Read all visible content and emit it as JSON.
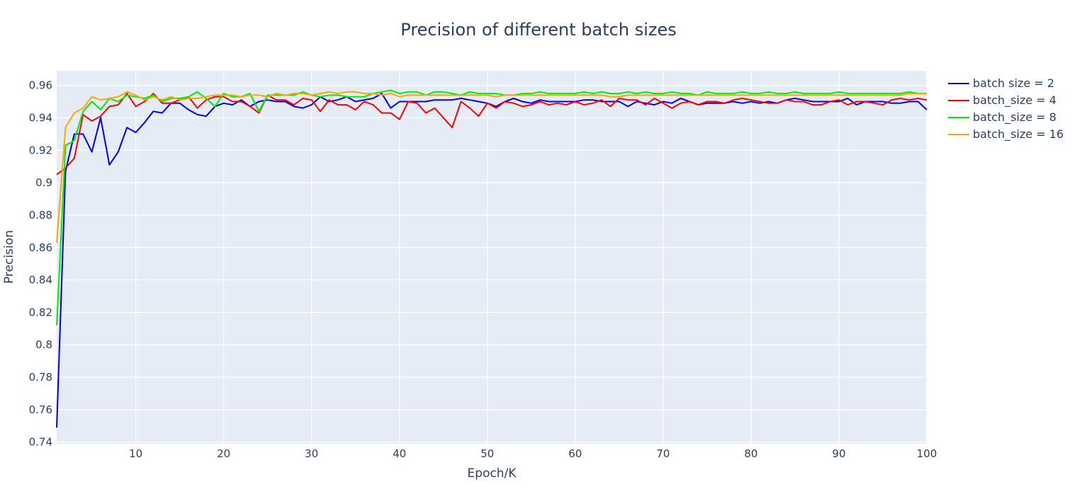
{
  "chart_data": {
    "type": "line",
    "title": "Precision of different batch sizes",
    "xlabel": "Epoch/K",
    "ylabel": "Precision",
    "xlim": [
      1,
      100
    ],
    "ylim": [
      0.739,
      0.969
    ],
    "x_ticks": [
      10,
      20,
      30,
      40,
      50,
      60,
      70,
      80,
      90,
      100
    ],
    "x_tick_labels": [
      "10",
      "20",
      "30",
      "40",
      "50",
      "60",
      "70",
      "80",
      "90",
      "100"
    ],
    "y_ticks": [
      0.74,
      0.76,
      0.78,
      0.8,
      0.82,
      0.84,
      0.86,
      0.88,
      0.9,
      0.92,
      0.94,
      0.96
    ],
    "y_tick_labels": [
      "0.74",
      "0.76",
      "0.78",
      "0.8",
      "0.82",
      "0.84",
      "0.86",
      "0.88",
      "0.9",
      "0.92",
      "0.94",
      "0.96"
    ],
    "grid": true,
    "legend_position": "top-right, outside plot",
    "plot_bgcolor": "#e5ecf6",
    "x": [
      1,
      2,
      3,
      4,
      5,
      6,
      7,
      8,
      9,
      10,
      11,
      12,
      13,
      14,
      15,
      16,
      17,
      18,
      19,
      20,
      21,
      22,
      23,
      24,
      25,
      26,
      27,
      28,
      29,
      30,
      31,
      32,
      33,
      34,
      35,
      36,
      37,
      38,
      39,
      40,
      41,
      42,
      43,
      44,
      45,
      46,
      47,
      48,
      49,
      50,
      51,
      52,
      53,
      54,
      55,
      56,
      57,
      58,
      59,
      60,
      61,
      62,
      63,
      64,
      65,
      66,
      67,
      68,
      69,
      70,
      71,
      72,
      73,
      74,
      75,
      76,
      77,
      78,
      79,
      80,
      81,
      82,
      83,
      84,
      85,
      86,
      87,
      88,
      89,
      90,
      91,
      92,
      93,
      94,
      95,
      96,
      97,
      98,
      99,
      100
    ],
    "series": [
      {
        "name": "batch size = 2",
        "color": "#0000ee",
        "values": [
          0.749,
          0.907,
          0.93,
          0.93,
          0.919,
          0.94,
          0.911,
          0.919,
          0.934,
          0.931,
          0.937,
          0.944,
          0.943,
          0.949,
          0.949,
          0.945,
          0.942,
          0.941,
          0.947,
          0.949,
          0.948,
          0.951,
          0.947,
          0.95,
          0.951,
          0.95,
          0.95,
          0.947,
          0.946,
          0.948,
          0.953,
          0.95,
          0.951,
          0.953,
          0.95,
          0.951,
          0.952,
          0.955,
          0.946,
          0.95,
          0.95,
          0.95,
          0.95,
          0.951,
          0.951,
          0.951,
          0.952,
          0.951,
          0.95,
          0.949,
          0.947,
          0.95,
          0.952,
          0.95,
          0.949,
          0.951,
          0.95,
          0.95,
          0.95,
          0.95,
          0.951,
          0.951,
          0.95,
          0.95,
          0.95,
          0.947,
          0.95,
          0.949,
          0.948,
          0.95,
          0.949,
          0.952,
          0.95,
          0.948,
          0.949,
          0.949,
          0.949,
          0.95,
          0.949,
          0.95,
          0.949,
          0.95,
          0.949,
          0.951,
          0.952,
          0.951,
          0.95,
          0.95,
          0.95,
          0.95,
          0.952,
          0.948,
          0.95,
          0.95,
          0.95,
          0.949,
          0.949,
          0.95,
          0.95,
          0.945
        ]
      },
      {
        "name": "batch_size = 4",
        "color": "#ff0000",
        "values": [
          0.905,
          0.909,
          0.915,
          0.942,
          0.938,
          0.941,
          0.947,
          0.948,
          0.955,
          0.947,
          0.95,
          0.955,
          0.949,
          0.949,
          0.951,
          0.953,
          0.946,
          0.951,
          0.953,
          0.953,
          0.95,
          0.95,
          0.947,
          0.943,
          0.954,
          0.951,
          0.951,
          0.948,
          0.952,
          0.951,
          0.944,
          0.951,
          0.948,
          0.948,
          0.945,
          0.95,
          0.948,
          0.943,
          0.943,
          0.939,
          0.95,
          0.949,
          0.943,
          0.946,
          0.94,
          0.934,
          0.95,
          0.946,
          0.941,
          0.949,
          0.946,
          0.95,
          0.949,
          0.947,
          0.948,
          0.95,
          0.948,
          0.949,
          0.948,
          0.95,
          0.948,
          0.949,
          0.951,
          0.947,
          0.952,
          0.951,
          0.951,
          0.948,
          0.952,
          0.949,
          0.946,
          0.949,
          0.95,
          0.948,
          0.95,
          0.95,
          0.949,
          0.951,
          0.952,
          0.951,
          0.95,
          0.949,
          0.949,
          0.951,
          0.95,
          0.95,
          0.948,
          0.948,
          0.95,
          0.951,
          0.948,
          0.95,
          0.95,
          0.949,
          0.948,
          0.951,
          0.952,
          0.951,
          0.952,
          0.951
        ]
      },
      {
        "name": "batch_size = 8",
        "color": "#00ee00",
        "values": [
          0.812,
          0.923,
          0.926,
          0.944,
          0.95,
          0.945,
          0.952,
          0.95,
          0.954,
          0.953,
          0.952,
          0.954,
          0.95,
          0.952,
          0.952,
          0.953,
          0.956,
          0.952,
          0.947,
          0.955,
          0.953,
          0.953,
          0.955,
          0.944,
          0.954,
          0.954,
          0.954,
          0.954,
          0.956,
          0.954,
          0.953,
          0.954,
          0.954,
          0.953,
          0.953,
          0.953,
          0.955,
          0.956,
          0.957,
          0.955,
          0.956,
          0.956,
          0.954,
          0.956,
          0.956,
          0.955,
          0.954,
          0.956,
          0.955,
          0.955,
          0.955,
          0.954,
          0.954,
          0.955,
          0.955,
          0.956,
          0.955,
          0.955,
          0.955,
          0.955,
          0.956,
          0.955,
          0.956,
          0.955,
          0.955,
          0.956,
          0.955,
          0.956,
          0.955,
          0.955,
          0.956,
          0.955,
          0.955,
          0.954,
          0.956,
          0.955,
          0.955,
          0.955,
          0.956,
          0.955,
          0.955,
          0.956,
          0.955,
          0.955,
          0.956,
          0.955,
          0.955,
          0.955,
          0.955,
          0.956,
          0.955,
          0.955,
          0.955,
          0.955,
          0.955,
          0.955,
          0.955,
          0.956,
          0.955,
          0.955
        ]
      },
      {
        "name": "batch_size = 16",
        "color": "#ffa500",
        "values": [
          0.863,
          0.934,
          0.943,
          0.946,
          0.953,
          0.951,
          0.952,
          0.953,
          0.956,
          0.954,
          0.951,
          0.953,
          0.951,
          0.953,
          0.951,
          0.952,
          0.952,
          0.953,
          0.954,
          0.954,
          0.954,
          0.953,
          0.954,
          0.954,
          0.953,
          0.955,
          0.954,
          0.955,
          0.955,
          0.954,
          0.955,
          0.956,
          0.955,
          0.956,
          0.956,
          0.955,
          0.955,
          0.954,
          0.955,
          0.953,
          0.954,
          0.954,
          0.954,
          0.954,
          0.954,
          0.954,
          0.954,
          0.954,
          0.954,
          0.954,
          0.953,
          0.954,
          0.954,
          0.954,
          0.954,
          0.954,
          0.954,
          0.954,
          0.954,
          0.954,
          0.954,
          0.954,
          0.954,
          0.953,
          0.953,
          0.954,
          0.954,
          0.954,
          0.954,
          0.954,
          0.954,
          0.954,
          0.954,
          0.954,
          0.954,
          0.954,
          0.954,
          0.954,
          0.954,
          0.954,
          0.954,
          0.954,
          0.954,
          0.954,
          0.954,
          0.954,
          0.954,
          0.954,
          0.954,
          0.954,
          0.954,
          0.954,
          0.954,
          0.954,
          0.954,
          0.954,
          0.954,
          0.955,
          0.955,
          0.955
        ]
      }
    ]
  }
}
